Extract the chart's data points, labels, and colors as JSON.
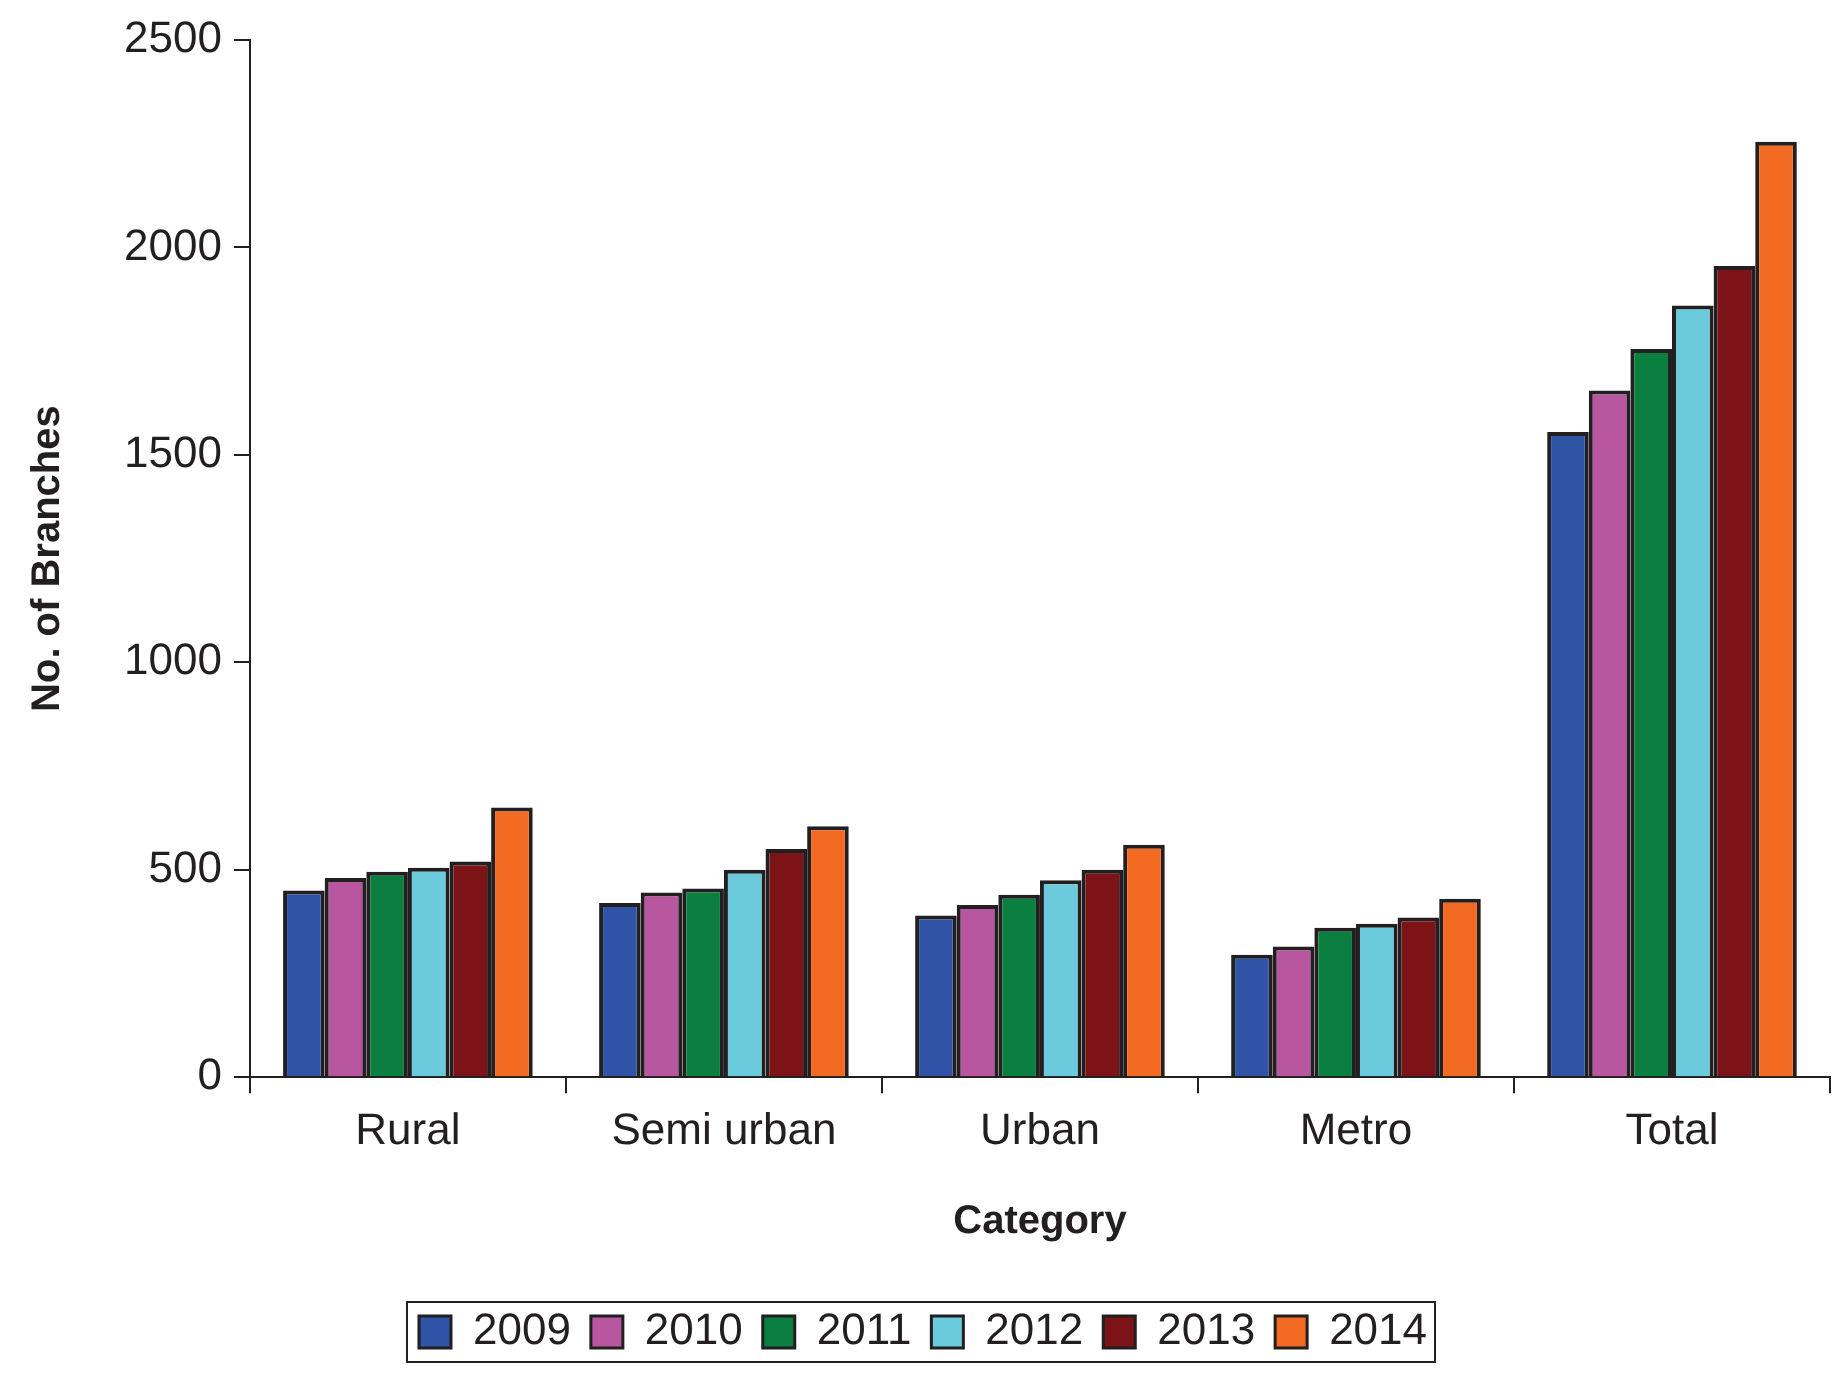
{
  "chart_data": {
    "type": "bar",
    "xlabel": "Category",
    "ylabel": "No. of Branches",
    "categories": [
      "Rural",
      "Semi urban",
      "Urban",
      "Metro",
      "Total"
    ],
    "series": [
      {
        "name": "2009",
        "color": "#2f54a5",
        "values": [
          450,
          420,
          390,
          295,
          1555
        ]
      },
      {
        "name": "2010",
        "color": "#b8569f",
        "values": [
          480,
          445,
          415,
          315,
          1655
        ]
      },
      {
        "name": "2011",
        "color": "#0a7f40",
        "values": [
          495,
          455,
          440,
          360,
          1755
        ]
      },
      {
        "name": "2012",
        "color": "#6bcbdc",
        "values": [
          505,
          500,
          475,
          370,
          1860
        ]
      },
      {
        "name": "2013",
        "color": "#7b1317",
        "values": [
          520,
          550,
          500,
          385,
          1955
        ]
      },
      {
        "name": "2014",
        "color": "#f26a22",
        "values": [
          650,
          605,
          560,
          430,
          2255
        ]
      }
    ],
    "ylim": [
      0,
      2500
    ],
    "yticks": [
      0,
      500,
      1000,
      1500,
      2000,
      2500
    ],
    "grid": false,
    "legend": "bottom"
  }
}
